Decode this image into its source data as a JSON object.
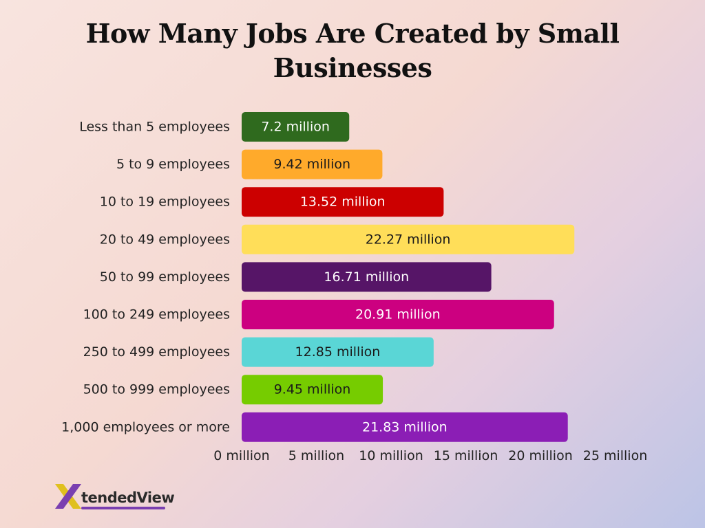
{
  "chart_data": {
    "type": "bar",
    "orientation": "horizontal",
    "title": "How Many Jobs Are Created by Small Businesses",
    "categories": [
      "Less than 5 employees",
      "5 to 9 employees",
      "10 to 19 employees",
      "20 to 49 employees",
      "50 to 99 employees",
      "100 to 249 employees",
      "250 to 499 employees",
      "500 to 999 employees",
      "1,000 employees or more"
    ],
    "values": [
      7.2,
      9.42,
      13.52,
      22.27,
      16.71,
      20.91,
      12.85,
      9.45,
      21.83
    ],
    "value_labels": [
      "7.2 million",
      "9.42 million",
      "13.52 million",
      "22.27 million",
      "16.71 million",
      "20.91 million",
      "12.85 million",
      "9.45 million",
      "21.83 million"
    ],
    "colors": [
      "#2f6a1e",
      "#ffaa2b",
      "#cc0000",
      "#ffde59",
      "#561567",
      "#cc0080",
      "#5ad6d6",
      "#76cc00",
      "#8b1eb5"
    ],
    "value_label_colors": [
      "#ffffff",
      "#1a1a1a",
      "#ffffff",
      "#1a1a1a",
      "#ffffff",
      "#ffffff",
      "#1a1a1a",
      "#1a1a1a",
      "#ffffff"
    ],
    "x_ticks": [
      0,
      5,
      10,
      15,
      20,
      25
    ],
    "x_tick_labels": [
      "0 million",
      "5 million",
      "10 million",
      "15 million",
      "20 million",
      "25 million"
    ],
    "xlim": [
      0,
      25
    ],
    "grid": false,
    "legend": "none"
  },
  "logo": {
    "text": "tendedView",
    "icon": "x-logo-icon"
  }
}
